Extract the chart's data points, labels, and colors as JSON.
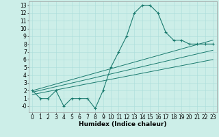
{
  "title": "",
  "xlabel": "Humidex (Indice chaleur)",
  "background_color": "#cceee8",
  "line_color": "#1a7a6e",
  "grid_color": "#aaddda",
  "xlim": [
    -0.5,
    23.5
  ],
  "ylim": [
    -0.8,
    13.5
  ],
  "xticks": [
    0,
    1,
    2,
    3,
    4,
    5,
    6,
    7,
    8,
    9,
    10,
    11,
    12,
    13,
    14,
    15,
    16,
    17,
    18,
    19,
    20,
    21,
    22,
    23
  ],
  "yticks": [
    0,
    1,
    2,
    3,
    4,
    5,
    6,
    7,
    8,
    9,
    10,
    11,
    12,
    13
  ],
  "main_series_x": [
    0,
    1,
    2,
    3,
    4,
    5,
    6,
    7,
    8,
    9,
    10,
    11,
    12,
    13,
    14,
    15,
    16,
    17,
    18,
    19,
    20,
    21,
    22,
    23
  ],
  "main_series_y": [
    2,
    1,
    1,
    2,
    0,
    1,
    1,
    1,
    -0.3,
    2,
    5,
    7,
    9,
    12,
    13,
    13,
    12,
    9.5,
    8.5,
    8.5,
    8,
    8,
    8,
    8
  ],
  "line1_x": [
    0,
    23
  ],
  "line1_y": [
    2.0,
    8.5
  ],
  "line2_x": [
    0,
    23
  ],
  "line2_y": [
    1.8,
    7.2
  ],
  "line3_x": [
    0,
    23
  ],
  "line3_y": [
    1.5,
    6.0
  ],
  "fontsize_label": 6.5,
  "fontsize_tick": 5.5
}
